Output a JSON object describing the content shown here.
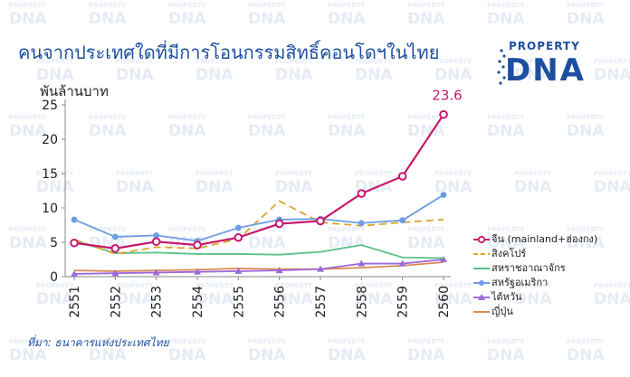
{
  "header": {
    "title": "คนจากประเทศใดที่มีการโอนกรรมสิทธิ์คอนโดฯในไทย"
  },
  "logo": {
    "small_text": "PROPERTY",
    "big_text": "DNA",
    "watermark_text": "PROPERTY DNA"
  },
  "footer": {
    "source": "ที่มา: ธนาคารแห่งประเทศไทย"
  },
  "colors": {
    "title": "#1d4fa0",
    "china": "#c8176c",
    "singapore": "#d9a62b",
    "uk": "#59c08a",
    "usa": "#6d9de3",
    "taiwan": "#9c6ad8",
    "japan": "#d98b55"
  },
  "chart_data": {
    "type": "line",
    "title": "คนจากประเทศใดที่มีการโอนกรรมสิทธิ์คอนโดฯในไทย",
    "ylabel": "พันล้านบาท",
    "xlabel": "",
    "categories": [
      "2551",
      "2552",
      "2553",
      "2554",
      "2555",
      "2556",
      "2557",
      "2558",
      "2559",
      "2560"
    ],
    "ylim": [
      0,
      25
    ],
    "yticks": [
      "0",
      "5",
      "10",
      "15",
      "20",
      "25"
    ],
    "grid": false,
    "legend_position": "right",
    "series": [
      {
        "name": "จีน (mainland+ฮ่องกง)",
        "values": [
          4.9,
          4.1,
          5.1,
          4.6,
          5.7,
          7.7,
          8.1,
          12.1,
          14.6,
          23.6
        ],
        "color": "#c8176c",
        "style": "circle"
      },
      {
        "name": "สิงคโปร์",
        "values": [
          5.4,
          3.3,
          4.3,
          4.1,
          5.5,
          11.0,
          7.9,
          7.4,
          7.9,
          8.3
        ],
        "color": "#d9a62b",
        "style": "dash"
      },
      {
        "name": "สหราชอาณาจักร",
        "values": [
          5.3,
          3.4,
          3.5,
          3.3,
          3.3,
          3.2,
          3.6,
          4.6,
          2.8,
          2.7
        ],
        "color": "#59c08a",
        "style": "solid"
      },
      {
        "name": "สหรัฐอเมริกา",
        "values": [
          8.3,
          5.8,
          6.0,
          5.2,
          7.1,
          8.3,
          8.4,
          7.8,
          8.2,
          11.9
        ],
        "color": "#6d9de3",
        "style": "dot"
      },
      {
        "name": "ไต้หวัน",
        "values": [
          0.4,
          0.5,
          0.6,
          0.7,
          0.8,
          0.9,
          1.1,
          1.9,
          1.9,
          2.5
        ],
        "color": "#9c6ad8",
        "style": "triangle"
      },
      {
        "name": "ญี่ปุ่น",
        "values": [
          0.9,
          0.8,
          0.9,
          1.0,
          1.2,
          1.1,
          1.1,
          1.3,
          1.6,
          2.1
        ],
        "color": "#d98b55",
        "style": "solid"
      }
    ],
    "annotations": [
      {
        "series": 0,
        "point": 9,
        "text": "23.6"
      }
    ]
  }
}
